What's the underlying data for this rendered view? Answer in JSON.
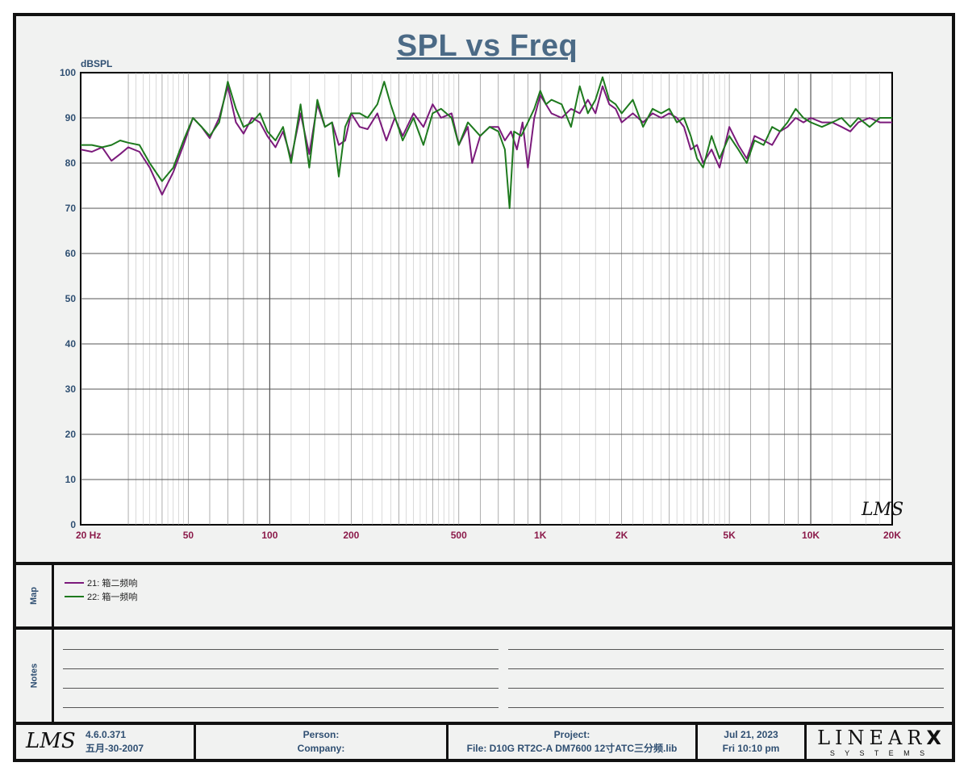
{
  "chart_data": {
    "type": "line",
    "title": "SPL vs Freq",
    "ylabel": "dBSPL",
    "x_scale": "log",
    "xlim": [
      20,
      20000
    ],
    "ylim": [
      0,
      100
    ],
    "y_ticks": [
      0,
      10,
      20,
      30,
      40,
      50,
      60,
      70,
      80,
      90,
      100
    ],
    "x_ticks": [
      {
        "value": 20,
        "label": "20  Hz"
      },
      {
        "value": 50,
        "label": "50"
      },
      {
        "value": 100,
        "label": "100"
      },
      {
        "value": 200,
        "label": "200"
      },
      {
        "value": 500,
        "label": "500"
      },
      {
        "value": 1000,
        "label": "1K"
      },
      {
        "value": 2000,
        "label": "2K"
      },
      {
        "value": 5000,
        "label": "5K"
      },
      {
        "value": 10000,
        "label": "10K"
      },
      {
        "value": 20000,
        "label": "20K"
      }
    ],
    "grid": true,
    "series": [
      {
        "name": "21: 箱二频响",
        "color": "#7b1a7b",
        "points": [
          [
            20,
            83
          ],
          [
            22,
            82.5
          ],
          [
            24,
            83.5
          ],
          [
            26,
            80.5
          ],
          [
            28,
            82
          ],
          [
            30,
            83.5
          ],
          [
            33,
            82.5
          ],
          [
            36,
            79
          ],
          [
            40,
            73
          ],
          [
            44,
            78
          ],
          [
            48,
            84
          ],
          [
            52,
            90
          ],
          [
            56,
            88
          ],
          [
            60,
            85.5
          ],
          [
            65,
            90
          ],
          [
            70,
            97
          ],
          [
            75,
            89
          ],
          [
            80,
            86.5
          ],
          [
            86,
            90
          ],
          [
            92,
            89
          ],
          [
            98,
            86
          ],
          [
            105,
            83.5
          ],
          [
            112,
            87
          ],
          [
            120,
            81
          ],
          [
            130,
            91
          ],
          [
            140,
            82
          ],
          [
            150,
            93
          ],
          [
            160,
            88
          ],
          [
            170,
            89
          ],
          [
            180,
            84
          ],
          [
            190,
            85
          ],
          [
            200,
            91
          ],
          [
            215,
            88
          ],
          [
            230,
            87.5
          ],
          [
            250,
            91
          ],
          [
            270,
            85
          ],
          [
            290,
            90
          ],
          [
            310,
            86
          ],
          [
            340,
            91
          ],
          [
            370,
            88
          ],
          [
            400,
            93
          ],
          [
            430,
            90
          ],
          [
            470,
            91
          ],
          [
            500,
            84
          ],
          [
            540,
            88
          ],
          [
            560,
            80
          ],
          [
            600,
            86
          ],
          [
            650,
            88
          ],
          [
            700,
            88
          ],
          [
            740,
            85
          ],
          [
            780,
            87
          ],
          [
            820,
            83
          ],
          [
            860,
            89
          ],
          [
            900,
            79
          ],
          [
            950,
            90
          ],
          [
            1000,
            95
          ],
          [
            1050,
            93
          ],
          [
            1100,
            91
          ],
          [
            1200,
            90
          ],
          [
            1300,
            92
          ],
          [
            1400,
            91
          ],
          [
            1500,
            94
          ],
          [
            1600,
            91
          ],
          [
            1700,
            97
          ],
          [
            1800,
            93
          ],
          [
            1900,
            92
          ],
          [
            2000,
            89
          ],
          [
            2200,
            91
          ],
          [
            2400,
            89
          ],
          [
            2600,
            91
          ],
          [
            2800,
            90
          ],
          [
            3000,
            91
          ],
          [
            3200,
            90
          ],
          [
            3400,
            88
          ],
          [
            3600,
            83
          ],
          [
            3800,
            84
          ],
          [
            4000,
            80
          ],
          [
            4300,
            83
          ],
          [
            4600,
            79
          ],
          [
            5000,
            88
          ],
          [
            5400,
            84
          ],
          [
            5800,
            81
          ],
          [
            6200,
            86
          ],
          [
            6700,
            85
          ],
          [
            7200,
            84
          ],
          [
            7700,
            87
          ],
          [
            8200,
            88
          ],
          [
            8800,
            90
          ],
          [
            9400,
            89
          ],
          [
            10000,
            90
          ],
          [
            11000,
            89
          ],
          [
            12000,
            89
          ],
          [
            13000,
            88
          ],
          [
            14000,
            87
          ],
          [
            15000,
            89
          ],
          [
            16500,
            90
          ],
          [
            18000,
            89
          ],
          [
            20000,
            89
          ]
        ]
      },
      {
        "name": "22: 箱一频响",
        "color": "#1e7a1e",
        "points": [
          [
            20,
            84
          ],
          [
            22,
            84
          ],
          [
            24,
            83.5
          ],
          [
            26,
            84
          ],
          [
            28,
            85
          ],
          [
            30,
            84.5
          ],
          [
            33,
            84
          ],
          [
            36,
            80
          ],
          [
            40,
            76
          ],
          [
            44,
            79
          ],
          [
            48,
            85
          ],
          [
            52,
            90
          ],
          [
            56,
            88
          ],
          [
            60,
            86
          ],
          [
            65,
            89
          ],
          [
            70,
            98
          ],
          [
            75,
            92
          ],
          [
            80,
            88
          ],
          [
            86,
            89
          ],
          [
            92,
            91
          ],
          [
            98,
            87
          ],
          [
            105,
            85
          ],
          [
            112,
            88
          ],
          [
            120,
            80
          ],
          [
            130,
            93
          ],
          [
            140,
            79
          ],
          [
            150,
            94
          ],
          [
            160,
            88
          ],
          [
            170,
            89
          ],
          [
            180,
            77
          ],
          [
            190,
            88
          ],
          [
            200,
            91
          ],
          [
            215,
            91
          ],
          [
            230,
            90
          ],
          [
            250,
            93
          ],
          [
            265,
            98
          ],
          [
            280,
            93
          ],
          [
            310,
            85
          ],
          [
            340,
            90
          ],
          [
            370,
            84
          ],
          [
            400,
            91
          ],
          [
            430,
            92
          ],
          [
            470,
            90
          ],
          [
            500,
            84
          ],
          [
            540,
            89
          ],
          [
            600,
            86
          ],
          [
            650,
            88
          ],
          [
            700,
            87
          ],
          [
            740,
            83
          ],
          [
            770,
            70
          ],
          [
            800,
            87
          ],
          [
            850,
            86
          ],
          [
            900,
            89
          ],
          [
            950,
            92
          ],
          [
            1000,
            96
          ],
          [
            1050,
            93
          ],
          [
            1100,
            94
          ],
          [
            1200,
            93
          ],
          [
            1300,
            88
          ],
          [
            1400,
            97
          ],
          [
            1500,
            91
          ],
          [
            1600,
            94
          ],
          [
            1700,
            99
          ],
          [
            1800,
            94
          ],
          [
            1900,
            93
          ],
          [
            2000,
            91
          ],
          [
            2200,
            94
          ],
          [
            2400,
            88
          ],
          [
            2600,
            92
          ],
          [
            2800,
            91
          ],
          [
            3000,
            92
          ],
          [
            3200,
            89
          ],
          [
            3400,
            90
          ],
          [
            3600,
            86
          ],
          [
            3800,
            81
          ],
          [
            4000,
            79
          ],
          [
            4300,
            86
          ],
          [
            4600,
            81
          ],
          [
            5000,
            86
          ],
          [
            5400,
            83
          ],
          [
            5800,
            80
          ],
          [
            6200,
            85
          ],
          [
            6700,
            84
          ],
          [
            7200,
            88
          ],
          [
            7700,
            87
          ],
          [
            8200,
            89
          ],
          [
            8800,
            92
          ],
          [
            9400,
            90
          ],
          [
            10000,
            89
          ],
          [
            11000,
            88
          ],
          [
            12000,
            89
          ],
          [
            13000,
            90
          ],
          [
            14000,
            88
          ],
          [
            15000,
            90
          ],
          [
            16500,
            88
          ],
          [
            18000,
            90
          ],
          [
            20000,
            90
          ]
        ]
      }
    ],
    "legend_placement": "map panel below chart"
  },
  "map_label": "Map",
  "notes_label": "Notes",
  "chart_logo": "LMS",
  "footer": {
    "logo": "LMS",
    "version": "4.6.0.371",
    "build_date": "五月-30-2007",
    "person_label": "Person:",
    "company_label": "Company:",
    "project_label": "Project:",
    "file_label": "File: D10G RT2C-A DM7600 12寸ATC三分频.lib",
    "date": "Jul 21, 2023",
    "time": "Fri 10:10 pm",
    "brand": "LINEAR",
    "brand_mark": "X",
    "brand_sub": "S Y S T E M S"
  }
}
